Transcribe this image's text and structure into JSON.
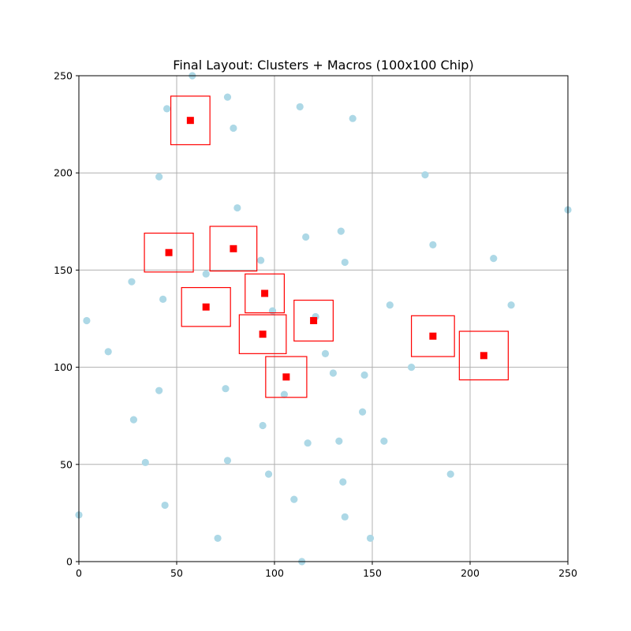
{
  "chart_data": {
    "type": "scatter",
    "title": "Final Layout: Clusters + Macros (100x100 Chip)",
    "xlabel": "",
    "ylabel": "",
    "xlim": [
      0,
      250
    ],
    "ylim": [
      0,
      250
    ],
    "grid": true,
    "x_ticks": [
      0,
      50,
      100,
      150,
      200,
      250
    ],
    "y_ticks": [
      0,
      50,
      100,
      150,
      200,
      250
    ],
    "colors": {
      "cluster": "#add8e6",
      "macro": "#ff0000"
    },
    "clusters": [
      {
        "x": 58,
        "y": 250
      },
      {
        "x": 76,
        "y": 239
      },
      {
        "x": 45,
        "y": 233
      },
      {
        "x": 113,
        "y": 234
      },
      {
        "x": 140,
        "y": 228
      },
      {
        "x": 79,
        "y": 223
      },
      {
        "x": 41,
        "y": 198
      },
      {
        "x": 177,
        "y": 199
      },
      {
        "x": 81,
        "y": 182
      },
      {
        "x": 250,
        "y": 181
      },
      {
        "x": 116,
        "y": 167
      },
      {
        "x": 134,
        "y": 170
      },
      {
        "x": 181,
        "y": 163
      },
      {
        "x": 212,
        "y": 156
      },
      {
        "x": 93,
        "y": 155
      },
      {
        "x": 136,
        "y": 154
      },
      {
        "x": 65,
        "y": 148
      },
      {
        "x": 27,
        "y": 144
      },
      {
        "x": 43,
        "y": 135
      },
      {
        "x": 99,
        "y": 129
      },
      {
        "x": 159,
        "y": 132
      },
      {
        "x": 221,
        "y": 132
      },
      {
        "x": 121,
        "y": 126
      },
      {
        "x": 4,
        "y": 124
      },
      {
        "x": 15,
        "y": 108
      },
      {
        "x": 126,
        "y": 107
      },
      {
        "x": 170,
        "y": 100
      },
      {
        "x": 130,
        "y": 97
      },
      {
        "x": 146,
        "y": 96
      },
      {
        "x": 41,
        "y": 88
      },
      {
        "x": 75,
        "y": 89
      },
      {
        "x": 105,
        "y": 86
      },
      {
        "x": 145,
        "y": 77
      },
      {
        "x": 28,
        "y": 73
      },
      {
        "x": 94,
        "y": 70
      },
      {
        "x": 133,
        "y": 62
      },
      {
        "x": 156,
        "y": 62
      },
      {
        "x": 117,
        "y": 61
      },
      {
        "x": 34,
        "y": 51
      },
      {
        "x": 76,
        "y": 52
      },
      {
        "x": 97,
        "y": 45
      },
      {
        "x": 190,
        "y": 45
      },
      {
        "x": 135,
        "y": 41
      },
      {
        "x": 110,
        "y": 32
      },
      {
        "x": 44,
        "y": 29
      },
      {
        "x": 0,
        "y": 24
      },
      {
        "x": 136,
        "y": 23
      },
      {
        "x": 71,
        "y": 12
      },
      {
        "x": 149,
        "y": 12
      },
      {
        "x": 114,
        "y": 0
      }
    ],
    "macros": [
      {
        "x": 57,
        "y": 227,
        "w": 20,
        "h": 25
      },
      {
        "x": 46,
        "y": 159,
        "w": 25,
        "h": 20
      },
      {
        "x": 79,
        "y": 161,
        "w": 24,
        "h": 23
      },
      {
        "x": 95,
        "y": 138,
        "w": 20,
        "h": 20
      },
      {
        "x": 65,
        "y": 131,
        "w": 25,
        "h": 20
      },
      {
        "x": 120,
        "y": 124,
        "w": 20,
        "h": 21
      },
      {
        "x": 94,
        "y": 117,
        "w": 24,
        "h": 20
      },
      {
        "x": 181,
        "y": 116,
        "w": 22,
        "h": 21
      },
      {
        "x": 207,
        "y": 106,
        "w": 25,
        "h": 25
      },
      {
        "x": 106,
        "y": 95,
        "w": 21,
        "h": 21
      }
    ]
  }
}
